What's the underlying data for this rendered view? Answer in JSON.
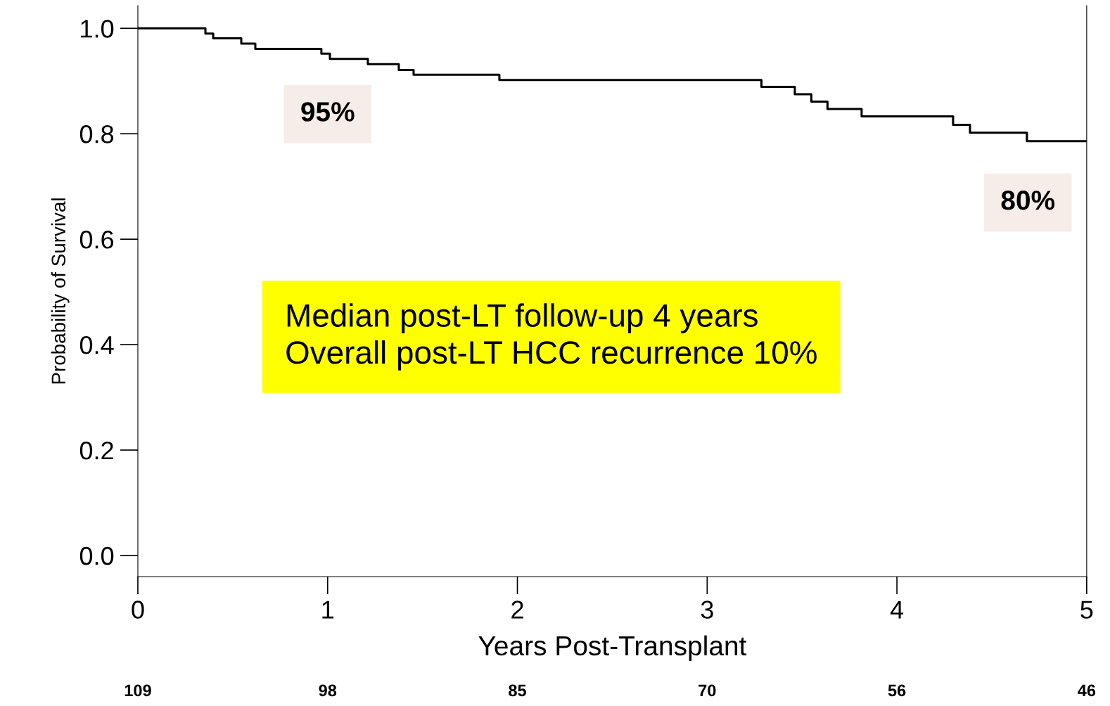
{
  "chart_data": {
    "type": "step",
    "xlabel": "Years Post-Transplant",
    "ylabel": "Probability of Survival",
    "x": [
      0,
      0.356,
      0.397,
      0.545,
      0.619,
      0.967,
      1.012,
      1.212,
      1.375,
      1.453,
      1.905,
      3.286,
      3.462,
      3.549,
      3.634,
      3.814,
      4.296,
      4.385,
      4.685,
      5.0
    ],
    "series": [
      {
        "color": "#000000",
        "values": [
          1.0,
          0.99,
          0.981,
          0.971,
          0.961,
          0.952,
          0.942,
          0.932,
          0.921,
          0.912,
          0.902,
          0.889,
          0.875,
          0.861,
          0.847,
          0.833,
          0.817,
          0.802,
          0.786,
          0.786
        ]
      }
    ],
    "xlim": [
      0,
      5
    ],
    "xticks": [
      0,
      1,
      2,
      3,
      4,
      5
    ],
    "ylim": [
      -0.04,
      1.043
    ],
    "yticks": [
      {
        "value": 0,
        "label": "0.0"
      },
      {
        "value": 0.2,
        "label": "0.2"
      },
      {
        "value": 0.4,
        "label": "0.4"
      },
      {
        "value": 0.6,
        "label": "0.6"
      },
      {
        "value": 0.8,
        "label": "0.8"
      },
      {
        "value": 1,
        "label": "1.0"
      }
    ],
    "grid": false,
    "legend": false,
    "annotations": [
      "95%",
      "80%",
      "Median post-LT follow-up 4 years\nOverall post-LT HCC recurrence 10%",
      "109",
      "98",
      "85",
      "70",
      "56",
      "46"
    ]
  }
}
